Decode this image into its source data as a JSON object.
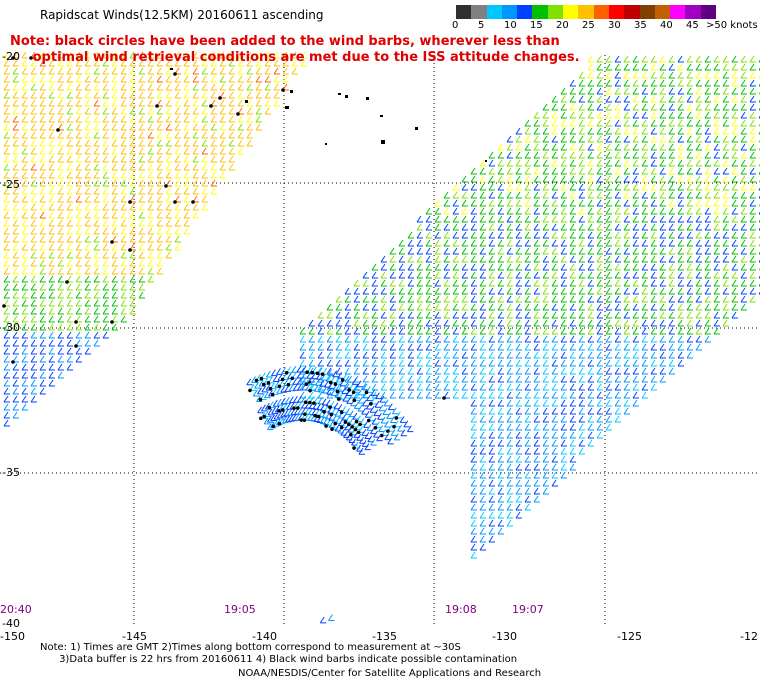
{
  "title": "Rapidscat Winds(12.5KM) 20160611 ascending",
  "note_line1": "Note: black circles have been added to the wind barbs, wherever less than",
  "note_line2": "     optimal wind retrieval conditions are met due to the ISS attitude changes.",
  "scale": {
    "colors": [
      "#303030",
      "#808080",
      "#00c8ff",
      "#0096ff",
      "#0040ff",
      "#00c000",
      "#80e000",
      "#ffff00",
      "#ffc000",
      "#ff6000",
      "#ff0000",
      "#c00000",
      "#804000",
      "#c06000",
      "#ff00ff",
      "#a000c0",
      "#600080"
    ],
    "labels": [
      "0",
      "5",
      "10",
      "15",
      "20",
      "25",
      "30",
      "35",
      "40",
      "45",
      ">50 knots"
    ],
    "label_text_suffix": ""
  },
  "lat_labels": [
    "-20",
    "-25",
    "-30",
    "-35",
    "-40"
  ],
  "lon_labels": [
    "-150",
    "-145",
    "-140",
    "-135",
    "-130",
    "-125",
    "-12"
  ],
  "time_labels": [
    "20:40",
    "19:05",
    "19:08",
    "19:07"
  ],
  "footnote_line1": "Note: 1) Times are GMT 2)Times along bottom correspond to measurement at ~30S",
  "footnote_line2": "      3)Data buffer is 22 hrs from 20160611 4) Black wind barbs indicate possible contamination",
  "credit": "NOAA/NESDIS/Center for Satellite Applications and Research"
}
